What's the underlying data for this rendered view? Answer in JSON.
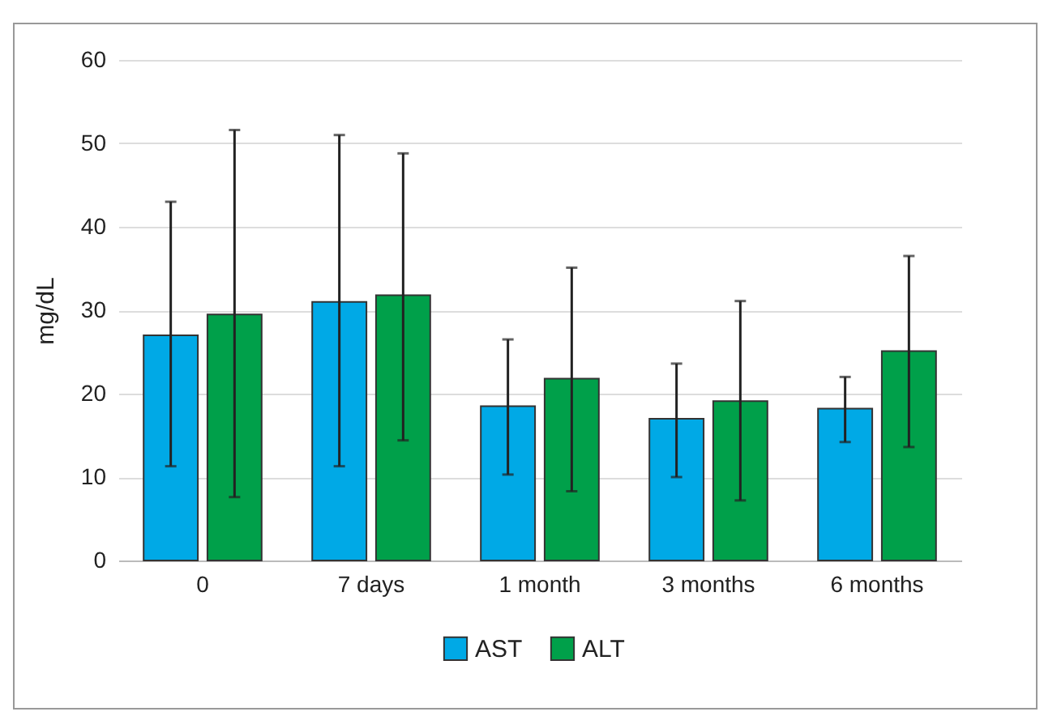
{
  "chart_data": {
    "type": "bar",
    "ylabel": "mg/dL",
    "categories": [
      "0",
      "7 days",
      "1 month",
      "3 months",
      "6 months"
    ],
    "series": [
      {
        "name": "AST",
        "color": "#00a9e6",
        "values": [
          27,
          31,
          18.5,
          17,
          18.2
        ],
        "errors": [
          [
            11.3,
            43
          ],
          [
            11.3,
            51
          ],
          [
            10.3,
            26.5
          ],
          [
            10,
            23.6
          ],
          [
            14.2,
            22
          ]
        ]
      },
      {
        "name": "ALT",
        "color": "#00a04a",
        "values": [
          29.5,
          31.8,
          21.8,
          19.1,
          25.1
        ],
        "errors": [
          [
            7.6,
            51.6
          ],
          [
            14.4,
            48.8
          ],
          [
            8.3,
            35.1
          ],
          [
            7.2,
            31.1
          ],
          [
            13.6,
            36.5
          ]
        ]
      }
    ],
    "ylim": [
      0,
      60
    ],
    "yticks": [
      0,
      10,
      20,
      30,
      40,
      50,
      60
    ],
    "grid": "y",
    "legend": "bottom"
  }
}
